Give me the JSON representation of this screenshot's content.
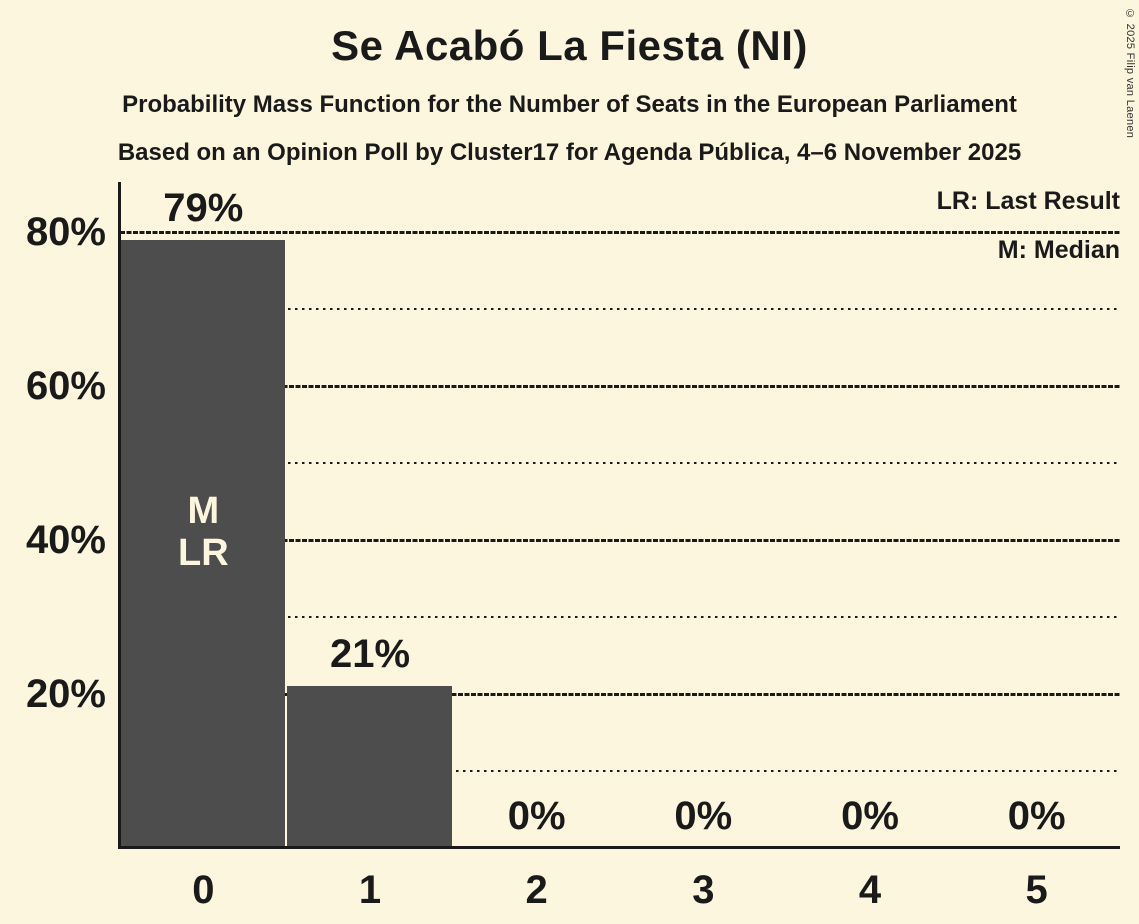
{
  "page": {
    "background_color": "#FBF6DD",
    "copyright": "© 2025 Filip van Laenen"
  },
  "header": {
    "title": "Se Acabó La Fiesta (NI)",
    "subtitle1": "Probability Mass Function for the Number of Seats in the European Parliament",
    "subtitle2": "Based on an Opinion Poll by Cluster17 for Agenda Pública, 4–6 November 2025"
  },
  "legend": {
    "last_result": "LR: Last Result",
    "median": "M: Median"
  },
  "chart_data": {
    "type": "bar",
    "title": "Se Acabó La Fiesta (NI)",
    "xlabel": "",
    "ylabel": "",
    "categories": [
      "0",
      "1",
      "2",
      "3",
      "4",
      "5"
    ],
    "values": [
      79,
      21,
      0,
      0,
      0,
      0
    ],
    "bar_labels": [
      "79%",
      "21%",
      "0%",
      "0%",
      "0%",
      "0%"
    ],
    "ylim": [
      0,
      86.5
    ],
    "yticks": [
      {
        "value": 20,
        "label": "20%"
      },
      {
        "value": 40,
        "label": "40%"
      },
      {
        "value": 60,
        "label": "60%"
      },
      {
        "value": 80,
        "label": "80%"
      }
    ],
    "major_gridlines": [
      20,
      40,
      60,
      80
    ],
    "minor_gridlines": [
      10,
      30,
      50,
      70
    ],
    "grid": true,
    "legend_position": "top-right",
    "annotations": [
      {
        "bar_index": 0,
        "lines": [
          "M",
          "LR"
        ],
        "meaning": "Median and Last Result at 0 seats"
      }
    ],
    "colors": {
      "bar": "#4D4D4D",
      "background": "#FBF6DD",
      "text": "#1A1A1A",
      "bar_annotation_text": "#FBF6DD"
    }
  }
}
